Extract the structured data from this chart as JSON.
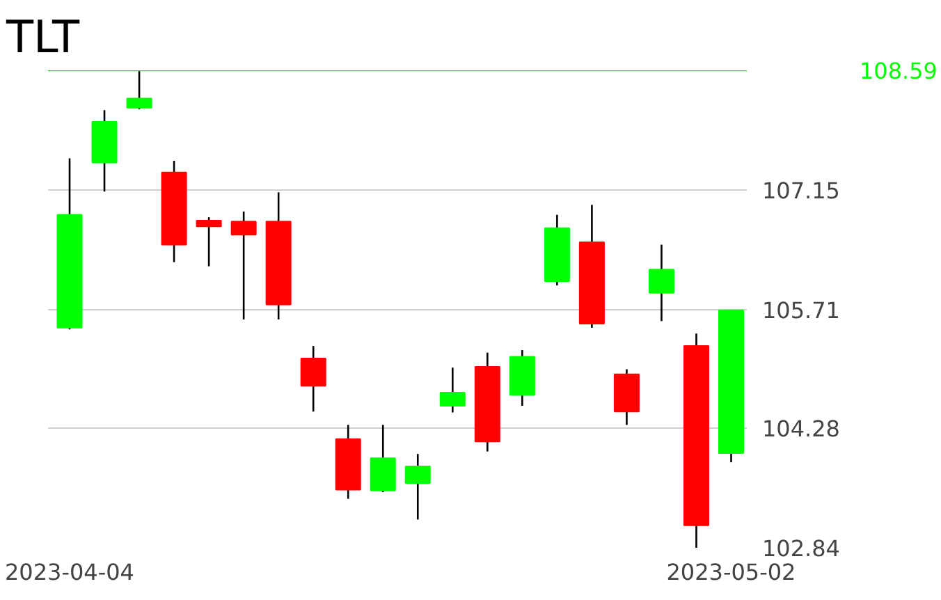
{
  "chart_data": {
    "type": "candlestick",
    "title": "TLT",
    "categories": [
      "2023-04-04",
      null,
      null,
      null,
      null,
      null,
      null,
      null,
      null,
      null,
      null,
      null,
      null,
      null,
      null,
      null,
      null,
      null,
      null,
      "2023-05-02"
    ],
    "ohlc": [
      [
        105.49,
        107.53,
        105.47,
        106.85
      ],
      [
        107.48,
        108.11,
        107.13,
        107.97
      ],
      [
        108.14,
        108.59,
        108.12,
        108.25
      ],
      [
        107.36,
        107.5,
        106.28,
        106.49
      ],
      [
        106.78,
        106.82,
        106.23,
        106.71
      ],
      [
        106.77,
        106.89,
        105.59,
        106.61
      ],
      [
        106.77,
        107.12,
        105.59,
        105.77
      ],
      [
        105.12,
        105.27,
        104.48,
        104.79
      ],
      [
        104.15,
        104.32,
        103.43,
        103.54
      ],
      [
        103.53,
        104.32,
        103.51,
        103.92
      ],
      [
        103.62,
        103.97,
        103.18,
        103.82
      ],
      [
        104.55,
        105.01,
        104.47,
        104.71
      ],
      [
        105.02,
        105.19,
        104.0,
        104.12
      ],
      [
        104.68,
        105.22,
        104.55,
        105.14
      ],
      [
        106.05,
        106.85,
        106.0,
        106.69
      ],
      [
        106.52,
        106.97,
        105.49,
        105.54
      ],
      [
        104.93,
        104.99,
        104.32,
        104.48
      ],
      [
        105.91,
        106.49,
        105.57,
        106.19
      ],
      [
        105.27,
        105.42,
        102.84,
        103.11
      ],
      [
        103.98,
        105.7,
        103.87,
        105.7
      ]
    ],
    "colors": [
      "#00ff00",
      "#00ff00",
      "#00ff00",
      "#ff0000",
      "#ff0000",
      "#ff0000",
      "#ff0000",
      "#ff0000",
      "#ff0000",
      "#00ff00",
      "#00ff00",
      "#00ff00",
      "#ff0000",
      "#00ff00",
      "#00ff00",
      "#ff0000",
      "#ff0000",
      "#00ff00",
      "#ff0000",
      "#00ff00"
    ],
    "ylim": [
      102.84,
      108.59
    ],
    "yticks": [
      102.84,
      104.28,
      105.71,
      107.15
    ],
    "ref_lines": [
      {
        "axis": "y",
        "value": 108.59,
        "label": "108.59",
        "color": "#00ff00"
      }
    ],
    "grid": "y"
  }
}
